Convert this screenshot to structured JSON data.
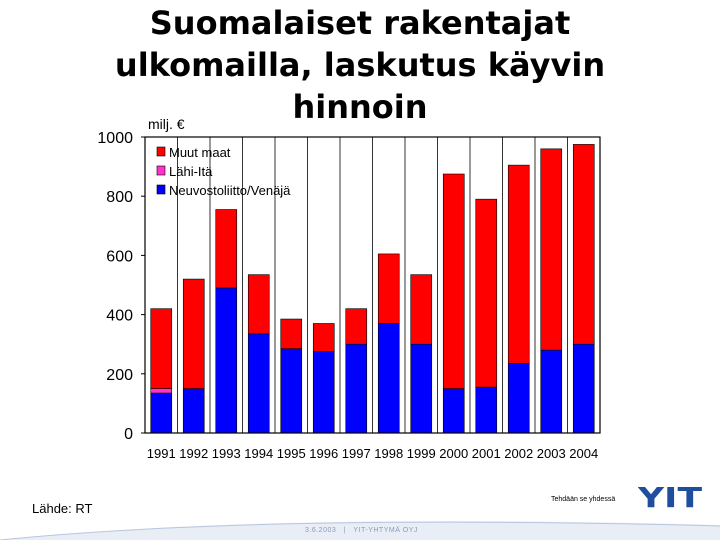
{
  "title_lines": [
    "Suomalaiset rakentajat",
    "ulkomailla, laskutus käyvin",
    "hinnoin"
  ],
  "unit_label": "milj. €",
  "source": "Lähde: RT",
  "slogan": "Tehdään se yhdessä",
  "footer_date": "3.6.2003",
  "footer_sep": "|",
  "footer_company": "YIT-YHTYMÄ OYJ",
  "logo_text": "YIT",
  "colors": {
    "muut_maat": "#ff0000",
    "lahi_ita": "#ff33cc",
    "neuvostoliitto": "#0000ff",
    "logo": "#1f4e9e"
  },
  "chart_data": {
    "type": "bar",
    "stacked": true,
    "categories": [
      "1991",
      "1992",
      "1993",
      "1994",
      "1995",
      "1996",
      "1997",
      "1998",
      "1999",
      "2000",
      "2001",
      "2002",
      "2003",
      "2004"
    ],
    "series": [
      {
        "name": "Neuvostoliitto/Venäjä",
        "color": "#0000ff",
        "values": [
          135,
          150,
          490,
          335,
          285,
          275,
          300,
          370,
          300,
          150,
          155,
          235,
          280,
          300
        ]
      },
      {
        "name": "Lähi-Itä",
        "color": "#ff33cc",
        "values": [
          15,
          0,
          0,
          0,
          0,
          0,
          0,
          0,
          0,
          0,
          0,
          0,
          0,
          0
        ]
      },
      {
        "name": "Muut maat",
        "color": "#ff0000",
        "values": [
          270,
          370,
          265,
          200,
          100,
          95,
          120,
          235,
          235,
          725,
          635,
          670,
          680,
          675
        ]
      }
    ],
    "legend_order": [
      "Muut maat",
      "Lähi-Itä",
      "Neuvostoliitto/Venäjä"
    ],
    "legend_position": "top-left",
    "ylabel": "milj. €",
    "ylim": [
      0,
      1000
    ],
    "yticks": [
      0,
      200,
      400,
      600,
      800,
      1000
    ],
    "grid": "vertical"
  }
}
